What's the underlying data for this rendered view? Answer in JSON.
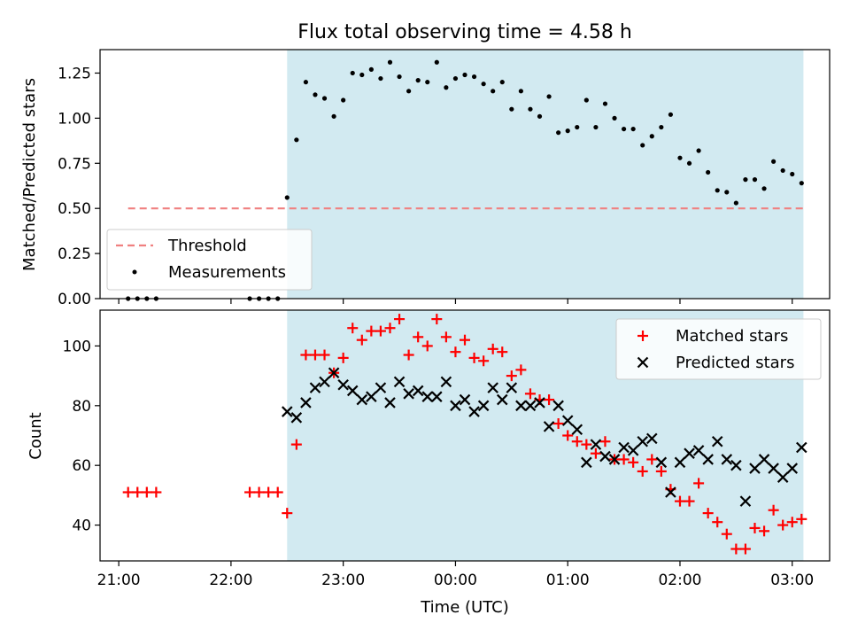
{
  "title": "Flux total observing time = 4.58 h",
  "chart_data": [
    {
      "type": "scatter",
      "ylabel": "Matched/Predicted stars",
      "xlim": [
        "20:50",
        "03:20"
      ],
      "ylim": [
        0,
        1.38
      ],
      "yticks": [
        "0.00",
        "0.25",
        "0.50",
        "0.75",
        "1.00",
        "1.25"
      ],
      "grid": false,
      "legend_position": "lower-left",
      "shaded_region": {
        "x": [
          "22:30",
          "03:06"
        ],
        "color": "#add8e6"
      },
      "threshold": {
        "name": "Threshold",
        "value": 0.5,
        "x": [
          "21:05",
          "03:06"
        ],
        "color": "#f08080",
        "style": "dashed"
      },
      "series": [
        {
          "name": "Measurements",
          "marker": "dot",
          "color": "#000000",
          "points": [
            [
              "21:05",
              0
            ],
            [
              "21:10",
              0
            ],
            [
              "21:15",
              0
            ],
            [
              "21:20",
              0
            ],
            [
              "22:10",
              0
            ],
            [
              "22:15",
              0
            ],
            [
              "22:20",
              0
            ],
            [
              "22:25",
              0
            ],
            [
              "22:30",
              0.56
            ],
            [
              "22:35",
              0.88
            ],
            [
              "22:40",
              1.2
            ],
            [
              "22:45",
              1.13
            ],
            [
              "22:50",
              1.11
            ],
            [
              "22:55",
              1.01
            ],
            [
              "23:00",
              1.1
            ],
            [
              "23:05",
              1.25
            ],
            [
              "23:10",
              1.24
            ],
            [
              "23:15",
              1.27
            ],
            [
              "23:20",
              1.22
            ],
            [
              "23:25",
              1.31
            ],
            [
              "23:30",
              1.23
            ],
            [
              "23:35",
              1.15
            ],
            [
              "23:40",
              1.21
            ],
            [
              "23:45",
              1.2
            ],
            [
              "23:50",
              1.31
            ],
            [
              "23:55",
              1.17
            ],
            [
              "00:00",
              1.22
            ],
            [
              "00:05",
              1.24
            ],
            [
              "00:10",
              1.23
            ],
            [
              "00:15",
              1.19
            ],
            [
              "00:20",
              1.15
            ],
            [
              "00:25",
              1.2
            ],
            [
              "00:30",
              1.05
            ],
            [
              "00:35",
              1.15
            ],
            [
              "00:40",
              1.05
            ],
            [
              "00:45",
              1.01
            ],
            [
              "00:50",
              1.12
            ],
            [
              "00:55",
              0.92
            ],
            [
              "01:00",
              0.93
            ],
            [
              "01:05",
              0.95
            ],
            [
              "01:10",
              1.1
            ],
            [
              "01:15",
              0.95
            ],
            [
              "01:20",
              1.08
            ],
            [
              "01:25",
              1.0
            ],
            [
              "01:30",
              0.94
            ],
            [
              "01:35",
              0.94
            ],
            [
              "01:40",
              0.85
            ],
            [
              "01:45",
              0.9
            ],
            [
              "01:50",
              0.95
            ],
            [
              "01:55",
              1.02
            ],
            [
              "02:00",
              0.78
            ],
            [
              "02:05",
              0.75
            ],
            [
              "02:10",
              0.82
            ],
            [
              "02:15",
              0.7
            ],
            [
              "02:20",
              0.6
            ],
            [
              "02:25",
              0.59
            ],
            [
              "02:30",
              0.53
            ],
            [
              "02:35",
              0.66
            ],
            [
              "02:40",
              0.66
            ],
            [
              "02:45",
              0.61
            ],
            [
              "02:50",
              0.76
            ],
            [
              "02:55",
              0.71
            ],
            [
              "03:00",
              0.69
            ],
            [
              "03:05",
              0.64
            ]
          ]
        }
      ]
    },
    {
      "type": "scatter",
      "xlabel": "Time (UTC)",
      "ylabel": "Count",
      "xlim": [
        "20:50",
        "03:20"
      ],
      "ylim": [
        28,
        112
      ],
      "yticks": [
        "40",
        "60",
        "80",
        "100"
      ],
      "xticks": [
        "21:00",
        "22:00",
        "23:00",
        "00:00",
        "01:00",
        "02:00",
        "03:00"
      ],
      "grid": false,
      "legend_position": "upper-right",
      "shaded_region": {
        "x": [
          "22:30",
          "03:06"
        ],
        "color": "#add8e6"
      },
      "series": [
        {
          "name": "Matched stars",
          "marker": "plus",
          "color": "#ff0000",
          "points": [
            [
              "21:05",
              51
            ],
            [
              "21:10",
              51
            ],
            [
              "21:15",
              51
            ],
            [
              "21:20",
              51
            ],
            [
              "22:10",
              51
            ],
            [
              "22:15",
              51
            ],
            [
              "22:20",
              51
            ],
            [
              "22:25",
              51
            ],
            [
              "22:30",
              44
            ],
            [
              "22:35",
              67
            ],
            [
              "22:40",
              97
            ],
            [
              "22:45",
              97
            ],
            [
              "22:50",
              97
            ],
            [
              "22:55",
              91
            ],
            [
              "23:00",
              96
            ],
            [
              "23:05",
              106
            ],
            [
              "23:10",
              102
            ],
            [
              "23:15",
              105
            ],
            [
              "23:20",
              105
            ],
            [
              "23:25",
              106
            ],
            [
              "23:30",
              109
            ],
            [
              "23:35",
              97
            ],
            [
              "23:40",
              103
            ],
            [
              "23:45",
              100
            ],
            [
              "23:50",
              109
            ],
            [
              "23:55",
              103
            ],
            [
              "00:00",
              98
            ],
            [
              "00:05",
              102
            ],
            [
              "00:10",
              96
            ],
            [
              "00:15",
              95
            ],
            [
              "00:20",
              99
            ],
            [
              "00:25",
              98
            ],
            [
              "00:30",
              90
            ],
            [
              "00:35",
              92
            ],
            [
              "00:40",
              84
            ],
            [
              "00:45",
              82
            ],
            [
              "00:50",
              82
            ],
            [
              "00:55",
              74
            ],
            [
              "01:00",
              70
            ],
            [
              "01:05",
              68
            ],
            [
              "01:10",
              67
            ],
            [
              "01:15",
              64
            ],
            [
              "01:20",
              68
            ],
            [
              "01:25",
              62
            ],
            [
              "01:30",
              62
            ],
            [
              "01:35",
              61
            ],
            [
              "01:40",
              58
            ],
            [
              "01:45",
              62
            ],
            [
              "01:50",
              58
            ],
            [
              "01:55",
              52
            ],
            [
              "02:00",
              48
            ],
            [
              "02:05",
              48
            ],
            [
              "02:10",
              54
            ],
            [
              "02:15",
              44
            ],
            [
              "02:20",
              41
            ],
            [
              "02:25",
              37
            ],
            [
              "02:30",
              32
            ],
            [
              "02:35",
              32
            ],
            [
              "02:40",
              39
            ],
            [
              "02:45",
              38
            ],
            [
              "02:50",
              45
            ],
            [
              "02:55",
              40
            ],
            [
              "03:00",
              41
            ],
            [
              "03:05",
              42
            ]
          ]
        },
        {
          "name": "Predicted stars",
          "marker": "x",
          "color": "#000000",
          "points": [
            [
              "22:30",
              78
            ],
            [
              "22:35",
              76
            ],
            [
              "22:40",
              81
            ],
            [
              "22:45",
              86
            ],
            [
              "22:50",
              88
            ],
            [
              "22:55",
              91
            ],
            [
              "23:00",
              87
            ],
            [
              "23:05",
              85
            ],
            [
              "23:10",
              82
            ],
            [
              "23:15",
              83
            ],
            [
              "23:20",
              86
            ],
            [
              "23:25",
              81
            ],
            [
              "23:30",
              88
            ],
            [
              "23:35",
              84
            ],
            [
              "23:40",
              85
            ],
            [
              "23:45",
              83
            ],
            [
              "23:50",
              83
            ],
            [
              "23:55",
              88
            ],
            [
              "00:00",
              80
            ],
            [
              "00:05",
              82
            ],
            [
              "00:10",
              78
            ],
            [
              "00:15",
              80
            ],
            [
              "00:20",
              86
            ],
            [
              "00:25",
              82
            ],
            [
              "00:30",
              86
            ],
            [
              "00:35",
              80
            ],
            [
              "00:40",
              80
            ],
            [
              "00:45",
              81
            ],
            [
              "00:50",
              73
            ],
            [
              "00:55",
              80
            ],
            [
              "01:00",
              75
            ],
            [
              "01:05",
              72
            ],
            [
              "01:10",
              61
            ],
            [
              "01:15",
              67
            ],
            [
              "01:20",
              63
            ],
            [
              "01:25",
              62
            ],
            [
              "01:30",
              66
            ],
            [
              "01:35",
              65
            ],
            [
              "01:40",
              68
            ],
            [
              "01:45",
              69
            ],
            [
              "01:50",
              61
            ],
            [
              "01:55",
              51
            ],
            [
              "02:00",
              61
            ],
            [
              "02:05",
              64
            ],
            [
              "02:10",
              65
            ],
            [
              "02:15",
              62
            ],
            [
              "02:20",
              68
            ],
            [
              "02:25",
              62
            ],
            [
              "02:30",
              60
            ],
            [
              "02:35",
              48
            ],
            [
              "02:40",
              59
            ],
            [
              "02:45",
              62
            ],
            [
              "02:50",
              59
            ],
            [
              "02:55",
              56
            ],
            [
              "03:00",
              59
            ],
            [
              "03:05",
              66
            ]
          ]
        }
      ]
    }
  ]
}
